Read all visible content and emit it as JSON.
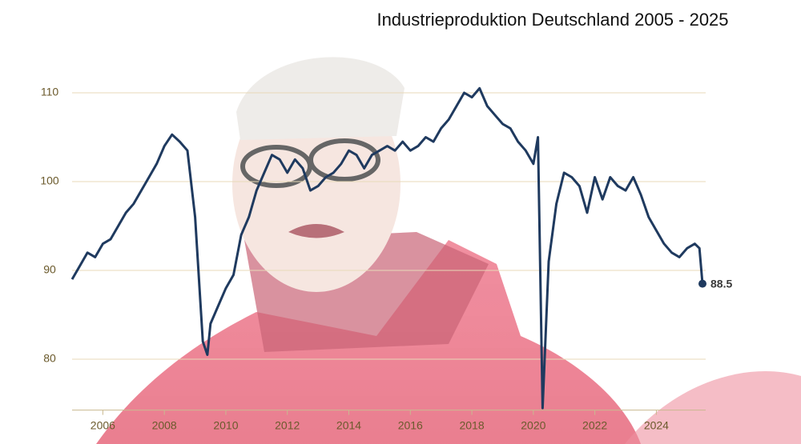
{
  "chart_data": {
    "type": "line",
    "title": "Industrieproduktion Deutschland 2005 - 2025",
    "x": [
      2005,
      2005.25,
      2005.5,
      2005.75,
      2006,
      2006.25,
      2006.5,
      2006.75,
      2007,
      2007.25,
      2007.5,
      2007.75,
      2008,
      2008.25,
      2008.5,
      2008.75,
      2009,
      2009.25,
      2009.4,
      2009.5,
      2009.75,
      2010,
      2010.25,
      2010.5,
      2010.75,
      2011,
      2011.25,
      2011.5,
      2011.75,
      2012,
      2012.25,
      2012.5,
      2012.75,
      2013,
      2013.25,
      2013.5,
      2013.75,
      2014,
      2014.25,
      2014.5,
      2014.75,
      2015,
      2015.25,
      2015.5,
      2015.75,
      2016,
      2016.25,
      2016.5,
      2016.75,
      2017,
      2017.25,
      2017.5,
      2017.75,
      2018,
      2018.25,
      2018.5,
      2018.75,
      2019,
      2019.25,
      2019.5,
      2019.75,
      2020,
      2020.15,
      2020.3,
      2020.5,
      2020.75,
      2021,
      2021.25,
      2021.5,
      2021.75,
      2022,
      2022.25,
      2022.5,
      2022.75,
      2023,
      2023.25,
      2023.5,
      2023.75,
      2024,
      2024.25,
      2024.5,
      2024.75,
      2025,
      2025.25,
      2025.4,
      2025.5
    ],
    "values": [
      89,
      90.5,
      92,
      91.5,
      93,
      93.5,
      95,
      96.5,
      97.5,
      99,
      100.5,
      102,
      104,
      105.3,
      104.5,
      103.5,
      96,
      82,
      80.5,
      84,
      86,
      88,
      89.5,
      94,
      96,
      99,
      101,
      103,
      102.5,
      101,
      102.5,
      101.5,
      99,
      99.5,
      100.5,
      101,
      102,
      103.5,
      103,
      101.5,
      103,
      103.5,
      104,
      103.5,
      104.5,
      103.5,
      104,
      105,
      104.5,
      106,
      107,
      108.5,
      110,
      109.5,
      110.5,
      108.5,
      107.5,
      106.5,
      106,
      104.5,
      103.5,
      102,
      105,
      74.5,
      91,
      97.5,
      101,
      100.5,
      99.5,
      96.5,
      100.5,
      98,
      100.5,
      99.5,
      99,
      100.5,
      98.5,
      96,
      94.5,
      93,
      92,
      91.5,
      92.5,
      93,
      92.5,
      88.5
    ],
    "color": "#1f3a5f",
    "xlim": [
      2005,
      2025.5
    ],
    "xticks": [
      2006,
      2008,
      2010,
      2012,
      2014,
      2016,
      2018,
      2020,
      2022,
      2024
    ],
    "ylim": [
      74,
      112
    ],
    "yticks": [
      80,
      90,
      100,
      110
    ],
    "grid": true
  }
}
